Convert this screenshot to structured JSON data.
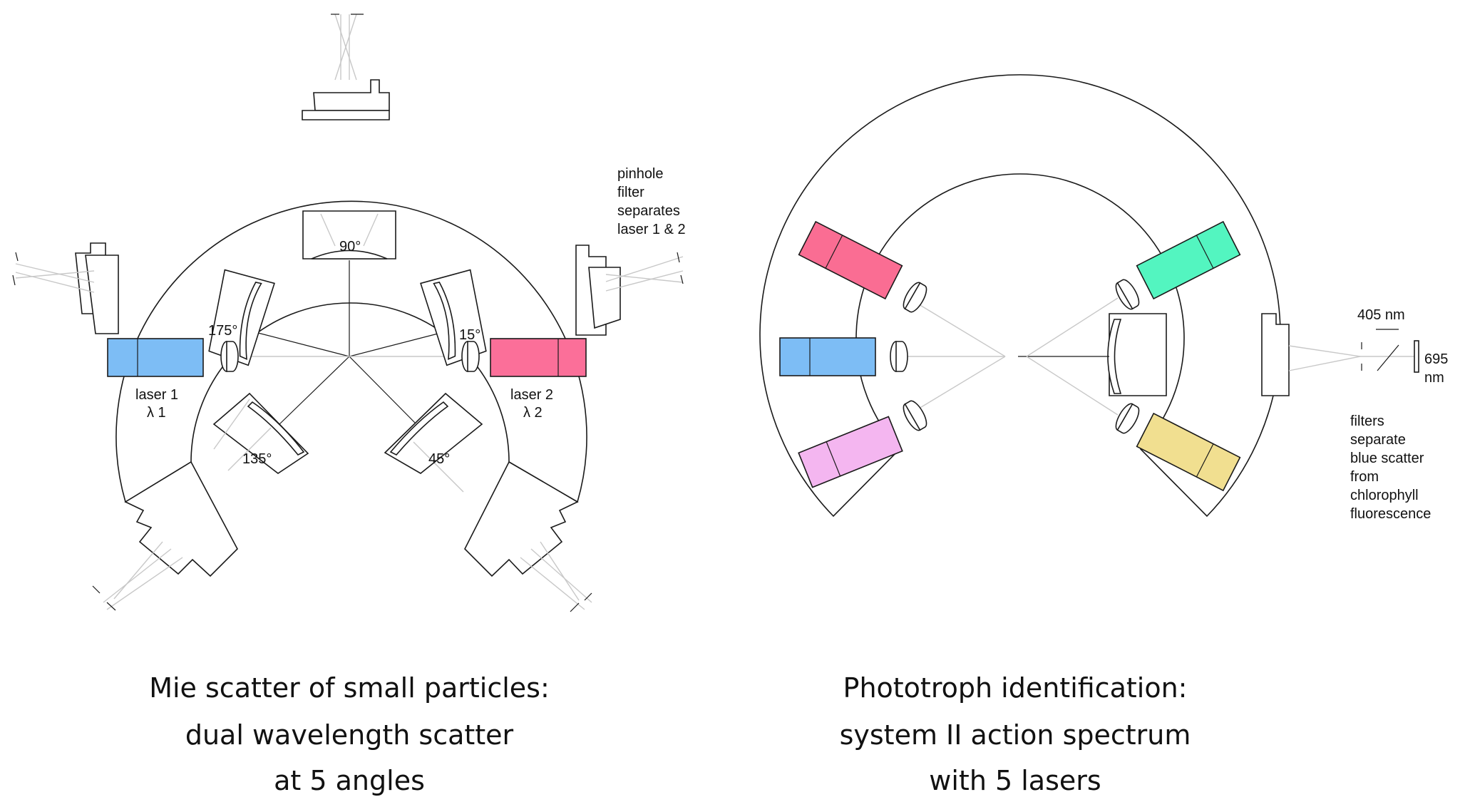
{
  "left": {
    "angles": [
      "90°",
      "175°",
      "15°",
      "135°",
      "45°"
    ],
    "laser1": {
      "name": "laser 1",
      "wavelength": "λ 1",
      "color": "#7dbdf5"
    },
    "laser2": {
      "name": "laser 2",
      "wavelength": "λ 2",
      "color": "#fb6f99"
    },
    "note": [
      "pinhole",
      "filter",
      "separates",
      "laser 1 & 2"
    ],
    "caption": [
      "Mie scatter of small particles:",
      "dual wavelength scatter",
      "at 5 angles"
    ]
  },
  "right": {
    "lasers": [
      {
        "id": "pink",
        "color": "#fa6d93"
      },
      {
        "id": "blue",
        "color": "#7dbdf5"
      },
      {
        "id": "violet",
        "color": "#f4b6f0"
      },
      {
        "id": "green",
        "color": "#53f5c0"
      },
      {
        "id": "yellow",
        "color": "#f1df90"
      }
    ],
    "wl405": "405 nm",
    "wl695": [
      "695",
      "nm"
    ],
    "note": [
      "filters",
      "separate",
      "blue scatter",
      "from",
      "chlorophyll",
      "fluorescence"
    ],
    "caption": [
      "Phototroph identification:",
      "system II action spectrum",
      "with 5 lasers"
    ]
  }
}
